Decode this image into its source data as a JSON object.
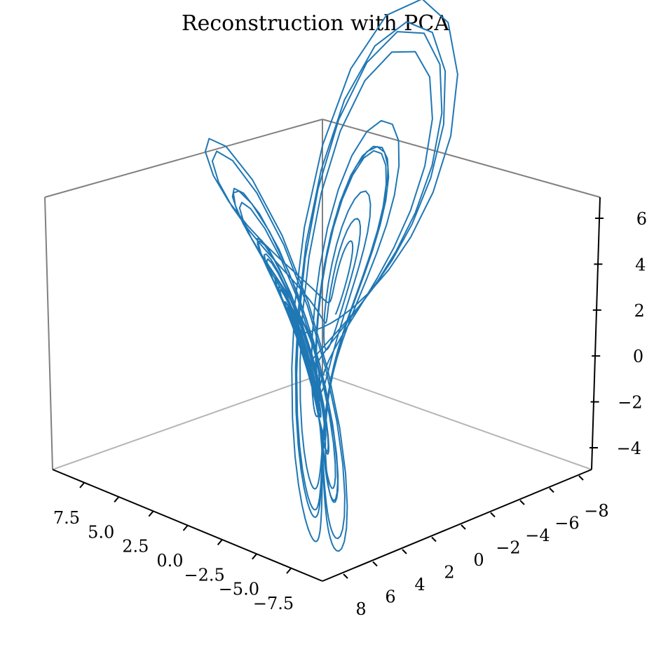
{
  "chart_data": {
    "type": "line",
    "projection": "3d",
    "title": "Reconstruction with PCA",
    "xlabel": "",
    "ylabel": "",
    "zlabel": "",
    "xlim": [
      -9,
      9
    ],
    "ylim": [
      -9,
      9
    ],
    "zlim": [
      -5,
      7
    ],
    "x_ticks": [
      "7.5",
      "5.0",
      "2.5",
      "0.0",
      "−2.5",
      "−5.0",
      "−7.5"
    ],
    "y_ticks": [
      "8",
      "6",
      "4",
      "2",
      "0",
      "−2",
      "−4",
      "−6",
      "−8"
    ],
    "z_ticks": [
      "6",
      "4",
      "2",
      "0",
      "−2",
      "−4"
    ],
    "grid": false,
    "series": [
      {
        "color": "#1f77b4",
        "approximate": true,
        "lorenz_reconstruction": true
      }
    ]
  }
}
